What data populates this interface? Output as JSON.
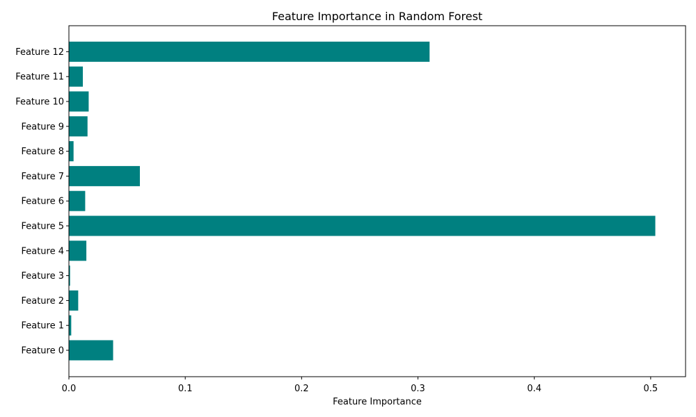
{
  "chart_data": {
    "type": "bar",
    "orientation": "horizontal",
    "title": "Feature Importance in Random Forest",
    "xlabel": "Feature Importance",
    "ylabel": "",
    "categories": [
      "Feature 0",
      "Feature 1",
      "Feature 2",
      "Feature 3",
      "Feature 4",
      "Feature 5",
      "Feature 6",
      "Feature 7",
      "Feature 8",
      "Feature 9",
      "Feature 10",
      "Feature 11",
      "Feature 12"
    ],
    "values": [
      0.038,
      0.002,
      0.008,
      0.001,
      0.015,
      0.504,
      0.014,
      0.061,
      0.004,
      0.016,
      0.017,
      0.012,
      0.31
    ],
    "xlim": [
      0,
      0.53
    ],
    "xticks": [
      0.0,
      0.1,
      0.2,
      0.3,
      0.4,
      0.5
    ],
    "xtick_labels": [
      "0.0",
      "0.1",
      "0.2",
      "0.3",
      "0.4",
      "0.5"
    ],
    "grid": false,
    "colors": {
      "bar": "#008080",
      "axis": "#000000",
      "background": "#ffffff"
    }
  }
}
